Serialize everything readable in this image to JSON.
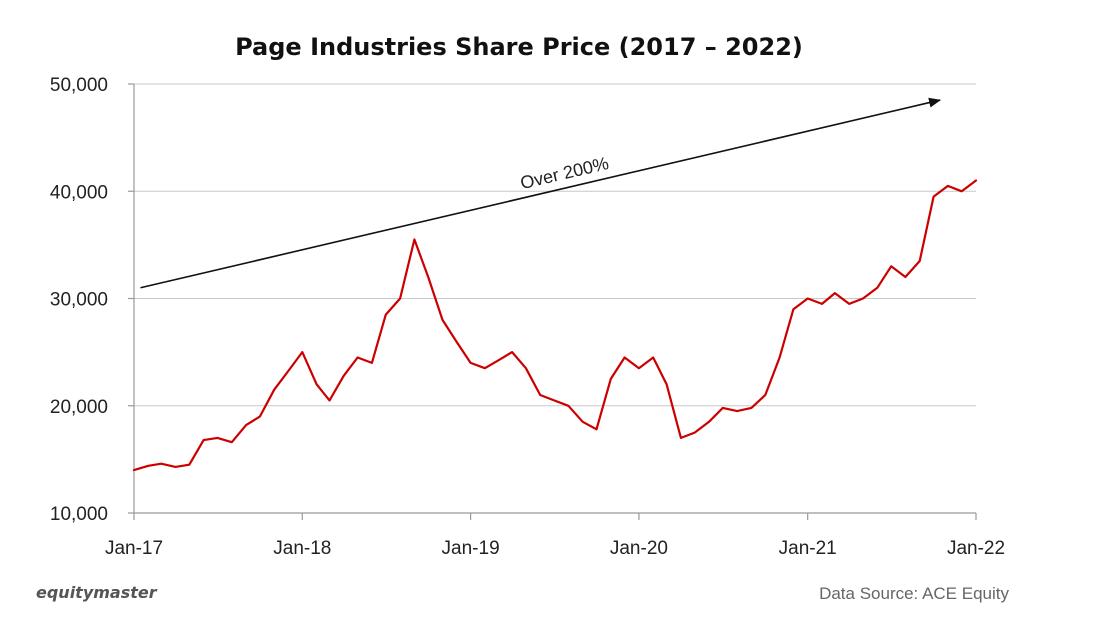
{
  "chart_data": {
    "type": "line",
    "title": "Page Industries Share Price (2017 – 2022)",
    "xlabel": "",
    "ylabel": "",
    "x_range": [
      "2017-01-01",
      "2022-01-01"
    ],
    "x_ticks": [
      "Jan-17",
      "Jan-18",
      "Jan-19",
      "Jan-20",
      "Jan-21",
      "Jan-22"
    ],
    "y_ticks": [
      "10,000",
      "20,000",
      "30,000",
      "40,000",
      "50,000"
    ],
    "y_tick_values": [
      10000,
      20000,
      30000,
      40000,
      50000
    ],
    "ylim": [
      10000,
      50000
    ],
    "grid": "horizontal",
    "legend": "none",
    "series": [
      {
        "color": "#cc0000",
        "x": [
          "2017-01-01",
          "2017-02-01",
          "2017-03-01",
          "2017-04-01",
          "2017-05-01",
          "2017-06-01",
          "2017-07-01",
          "2017-08-01",
          "2017-09-01",
          "2017-10-01",
          "2017-11-01",
          "2017-12-01",
          "2018-01-01",
          "2018-02-01",
          "2018-03-01",
          "2018-04-01",
          "2018-05-01",
          "2018-06-01",
          "2018-07-01",
          "2018-08-01",
          "2018-09-01",
          "2018-10-01",
          "2018-11-01",
          "2018-12-01",
          "2019-01-01",
          "2019-02-01",
          "2019-03-01",
          "2019-04-01",
          "2019-05-01",
          "2019-06-01",
          "2019-07-01",
          "2019-08-01",
          "2019-09-01",
          "2019-10-01",
          "2019-11-01",
          "2019-12-01",
          "2020-01-01",
          "2020-02-01",
          "2020-03-01",
          "2020-04-01",
          "2020-05-01",
          "2020-06-01",
          "2020-07-01",
          "2020-08-01",
          "2020-09-01",
          "2020-10-01",
          "2020-11-01",
          "2020-12-01",
          "2021-01-01",
          "2021-02-01",
          "2021-03-01",
          "2021-04-01",
          "2021-05-01",
          "2021-06-01",
          "2021-07-01",
          "2021-08-01",
          "2021-09-01",
          "2021-10-01",
          "2021-11-01",
          "2021-12-01",
          "2022-01-01"
        ],
        "values": [
          14000,
          14400,
          14600,
          14300,
          14500,
          16800,
          17000,
          16600,
          18200,
          19000,
          21500,
          23200,
          25000,
          22000,
          20500,
          22800,
          24500,
          24000,
          28500,
          30000,
          35500,
          32000,
          28000,
          26000,
          24000,
          23500,
          24200,
          25000,
          23500,
          21000,
          20500,
          20000,
          18500,
          17800,
          22500,
          24500,
          23500,
          24500,
          22000,
          17000,
          17500,
          18500,
          19800,
          19500,
          19800,
          21000,
          24500,
          29000,
          30000,
          29500,
          30500,
          29500,
          30000,
          31000,
          33000,
          32000,
          33500,
          39500,
          40500,
          40000,
          41000
        ]
      }
    ],
    "annotations": [
      {
        "text": "Over 200%",
        "arrow_from": [
          "2017-01-15",
          31000
        ],
        "arrow_to": [
          "2021-10-15",
          48500
        ]
      }
    ]
  },
  "footer": {
    "brand": "equitymaster",
    "source": "Data Source: ACE Equity"
  },
  "colors": {
    "line": "#cc0000",
    "grid": "#c8c8c8",
    "axis": "#9a9a9a",
    "text": "#222222"
  }
}
